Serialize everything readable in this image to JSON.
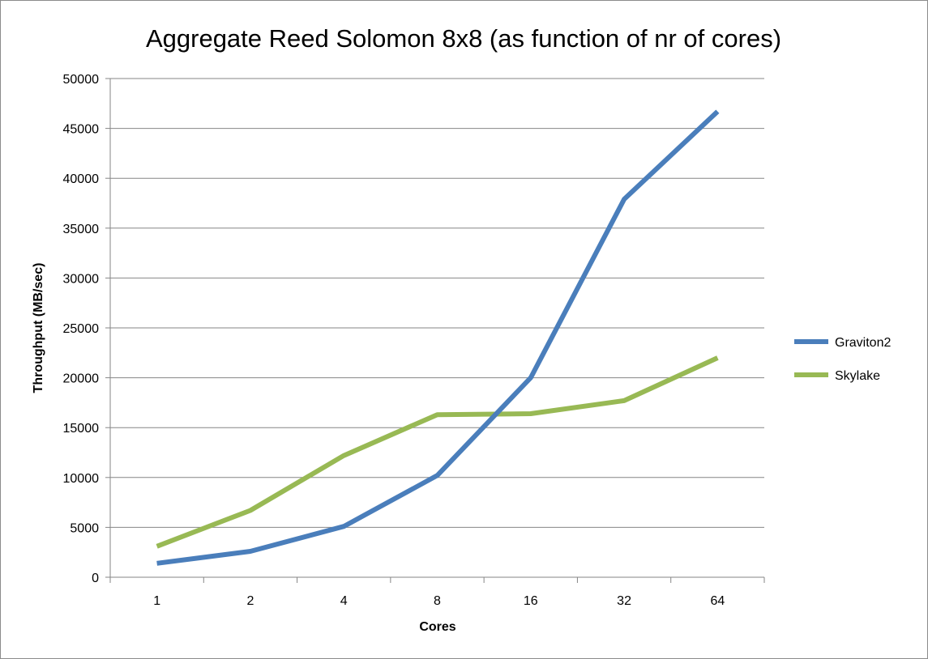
{
  "chart_data": {
    "type": "line",
    "title": "Aggregate Reed Solomon 8x8 (as function of nr of cores)",
    "xlabel": "Cores",
    "ylabel": "Throughput (MB/sec)",
    "categories": [
      "1",
      "2",
      "4",
      "8",
      "16",
      "32",
      "64"
    ],
    "ylim": [
      0,
      50000
    ],
    "yticks": [
      0,
      5000,
      10000,
      15000,
      20000,
      25000,
      30000,
      35000,
      40000,
      45000,
      50000
    ],
    "grid": true,
    "legend": "right",
    "series": [
      {
        "name": "Graviton2",
        "color": "#4a7ebb",
        "values": [
          1400,
          2600,
          5100,
          10200,
          20000,
          37900,
          46700
        ]
      },
      {
        "name": "Skylake",
        "color": "#98b954",
        "values": [
          3100,
          6700,
          12200,
          16300,
          16400,
          17700,
          22000
        ]
      }
    ]
  }
}
